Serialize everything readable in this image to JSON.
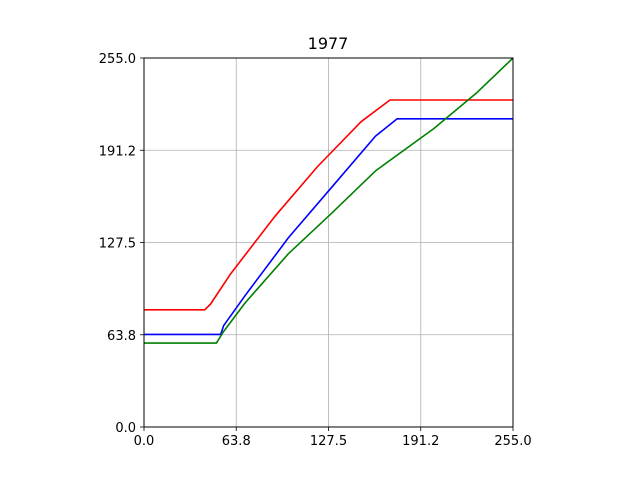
{
  "chart_data": {
    "type": "line",
    "title": "1977",
    "xlabel": "",
    "ylabel": "",
    "xlim": [
      0,
      255
    ],
    "ylim": [
      0,
      255
    ],
    "xticks": [
      "0.0",
      "63.8",
      "127.5",
      "191.2",
      "255.0"
    ],
    "xtick_values": [
      0,
      63.75,
      127.5,
      191.25,
      255
    ],
    "yticks": [
      "0.0",
      "63.8",
      "127.5",
      "191.2",
      "255.0"
    ],
    "ytick_values": [
      0,
      63.75,
      127.5,
      191.25,
      255
    ],
    "grid": true,
    "series": [
      {
        "color": "#ff0000",
        "x": [
          0,
          42,
          46,
          60,
          90,
          120,
          150,
          170,
          175,
          255
        ],
        "y": [
          81,
          81,
          85,
          106,
          145,
          180,
          211,
          226,
          226,
          226
        ]
      },
      {
        "color": "#0000ff",
        "x": [
          0,
          53,
          55,
          70,
          100,
          130,
          160,
          175,
          177,
          255
        ],
        "y": [
          64,
          64,
          70,
          91,
          131,
          166,
          201,
          213,
          213,
          213
        ]
      },
      {
        "color": "#008000",
        "x": [
          0,
          50,
          55,
          70,
          100,
          130,
          160,
          200,
          230,
          255
        ],
        "y": [
          58,
          58,
          66,
          86,
          120,
          148,
          177,
          206,
          231,
          255
        ]
      }
    ]
  }
}
